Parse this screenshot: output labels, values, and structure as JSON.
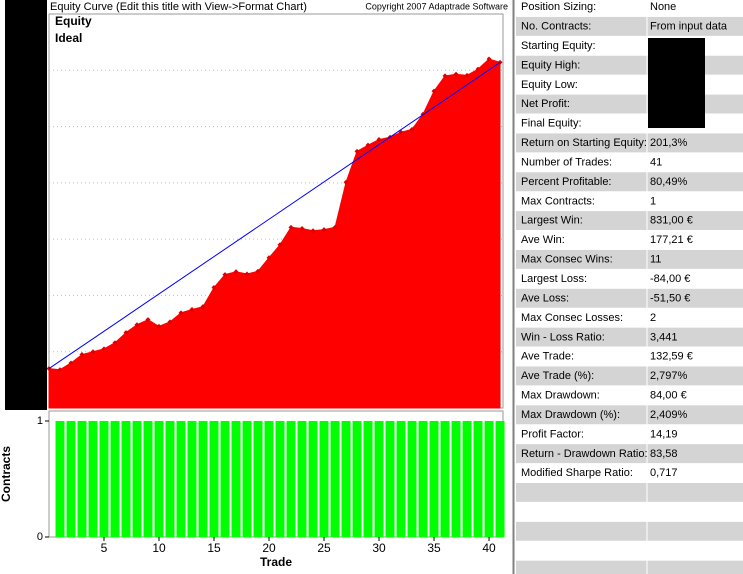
{
  "header": {
    "title": "Equity Curve (Edit this title with View->Format Chart)",
    "copyright": "Copyright 2007 Adaptrade Software"
  },
  "chart_data": [
    {
      "type": "area",
      "series": [
        {
          "name": "Equity",
          "color": "#ff0000",
          "x": [
            0,
            1,
            2,
            3,
            4,
            5,
            6,
            7,
            8,
            9,
            10,
            11,
            12,
            13,
            14,
            15,
            16,
            17,
            18,
            19,
            20,
            21,
            22,
            23,
            24,
            25,
            26,
            27,
            28,
            29,
            30,
            31,
            32,
            33,
            34,
            35,
            36,
            37,
            38,
            39,
            40,
            41
          ],
          "values": [
            2700,
            2680,
            2800,
            2950,
            3000,
            3050,
            3160,
            3340,
            3480,
            3570,
            3450,
            3530,
            3690,
            3750,
            3800,
            4140,
            4370,
            4420,
            4380,
            4430,
            4670,
            4900,
            5210,
            5190,
            5150,
            5170,
            5210,
            6010,
            6560,
            6670,
            6770,
            6810,
            6900,
            6950,
            7220,
            7630,
            7900,
            7930,
            7910,
            8020,
            8200,
            8140
          ]
        },
        {
          "name": "Ideal",
          "color": "#0000ff",
          "x": [
            0,
            41
          ],
          "values": [
            2700,
            8140
          ]
        }
      ],
      "xlim": [
        0,
        41.27
      ],
      "ylim": [
        2000,
        9000
      ],
      "ygrid": [
        3000,
        4000,
        5000,
        6000,
        7000,
        8000
      ]
    },
    {
      "type": "bar",
      "ylabel": "Contracts",
      "xlabel": "Trade",
      "color": "#00ff00",
      "x": [
        1,
        2,
        3,
        4,
        5,
        6,
        7,
        8,
        9,
        10,
        11,
        12,
        13,
        14,
        15,
        16,
        17,
        18,
        19,
        20,
        21,
        22,
        23,
        24,
        25,
        26,
        27,
        28,
        29,
        30,
        31,
        32,
        33,
        34,
        35,
        36,
        37,
        38,
        39,
        40,
        41
      ],
      "values": [
        1,
        1,
        1,
        1,
        1,
        1,
        1,
        1,
        1,
        1,
        1,
        1,
        1,
        1,
        1,
        1,
        1,
        1,
        1,
        1,
        1,
        1,
        1,
        1,
        1,
        1,
        1,
        1,
        1,
        1,
        1,
        1,
        1,
        1,
        1,
        1,
        1,
        1,
        1,
        1,
        1
      ],
      "xlim": [
        0,
        41.27
      ],
      "ylim": [
        0,
        1.086
      ],
      "yticks": [
        0,
        1
      ],
      "xticks": [
        5,
        10,
        15,
        20,
        25,
        30,
        35,
        40
      ]
    }
  ],
  "stats": {
    "rows": [
      {
        "label": "Position Sizing:",
        "value": "None"
      },
      {
        "label": "No. Contracts:",
        "value": "From input data"
      },
      {
        "label": "Starting Equity:"
      },
      {
        "label": "Equity High:"
      },
      {
        "label": "Equity Low:"
      },
      {
        "label": "Net Profit:"
      },
      {
        "label": "Final Equity:"
      },
      {
        "label": "Return on Starting Equity:",
        "value": "201,3%"
      },
      {
        "label": "Number of Trades:",
        "value": "41"
      },
      {
        "label": "Percent Profitable:",
        "value": "80,49%"
      },
      {
        "label": "Max Contracts:",
        "value": "1"
      },
      {
        "label": "Largest Win:",
        "value": "831,00 €"
      },
      {
        "label": "Ave Win:",
        "value": "177,21 €"
      },
      {
        "label": "Max Consec Wins:",
        "value": "11"
      },
      {
        "label": "Largest Loss:",
        "value": "-84,00 €"
      },
      {
        "label": "Ave Loss:",
        "value": "-51,50 €"
      },
      {
        "label": "Max Consec Losses:",
        "value": "2"
      },
      {
        "label": "Win - Loss Ratio:",
        "value": "3,441"
      },
      {
        "label": "Ave Trade:",
        "value": "132,59 €"
      },
      {
        "label": "Ave Trade (%):",
        "value": "2,797%"
      },
      {
        "label": "Max Drawdown:",
        "value": "84,00 €"
      },
      {
        "label": "Max Drawdown (%):",
        "value": "2,409%"
      },
      {
        "label": "Profit Factor:",
        "value": "14,19"
      },
      {
        "label": "Return - Drawdown Ratio:",
        "value": "83,58"
      },
      {
        "label": "Modified Sharpe Ratio:",
        "value": "0,717"
      }
    ]
  }
}
